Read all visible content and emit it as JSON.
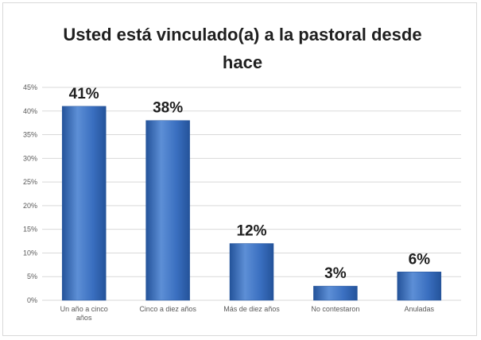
{
  "chart_data": {
    "type": "bar",
    "title": "Usted está vinculado(a) a la pastoral desde hace",
    "categories": [
      [
        "Un año a cinco",
        "años"
      ],
      [
        "Cinco a diez años"
      ],
      [
        "Más de diez años"
      ],
      [
        "No contestaron"
      ],
      [
        "Anuladas"
      ]
    ],
    "values": [
      41,
      38,
      12,
      3,
      6
    ],
    "data_labels": [
      "41%",
      "38%",
      "12%",
      "3%",
      "6%"
    ],
    "ylim": [
      0,
      45
    ],
    "yticks": [
      0,
      5,
      10,
      15,
      20,
      25,
      30,
      35,
      40,
      45
    ],
    "ytick_labels": [
      "0%",
      "5%",
      "10%",
      "15%",
      "20%",
      "25%",
      "30%",
      "35%",
      "40%",
      "45%"
    ],
    "grid": true,
    "legend": "none",
    "colors": {
      "bar": "#3a6fc0",
      "bar_dark": "#24539a",
      "bar_light": "#5d8fd6",
      "grid": "#d9d9d9"
    }
  }
}
